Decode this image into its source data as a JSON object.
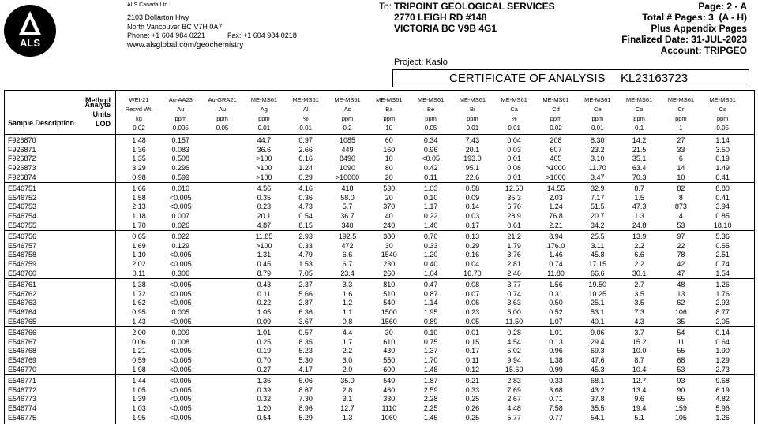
{
  "header": {
    "logo": "ALS",
    "company": "ALS Canada Ltd.",
    "address": [
      "2103 Dollarton Hwy",
      "North Vancouver BC V7H 0A7"
    ],
    "phone": "Phone: +1 604 984 0221",
    "fax": "Fax: +1 604 984 0218",
    "website": "www.alsglobal.com/geochemistry",
    "to_label": "To:",
    "to": [
      "TRIPOINT GEOLOGICAL SERVICES",
      "2770 LEIGH RD #148",
      "VICTORIA BC V9B 4G1"
    ],
    "page_info": [
      "Page: 2 - A",
      "Total # Pages: 3  (A - H)",
      "Plus Appendix Pages",
      "Finalized Date: 31-JUL-2023",
      "Account: TRIPGEO"
    ],
    "project": "Project: Kaslo",
    "certificate": "CERTIFICATE OF ANALYSIS",
    "certificate_id": "KL23163723"
  },
  "table": {
    "row_labels": [
      "Method",
      "Analyte",
      "Units",
      "LOD"
    ],
    "sample_header": "Sample Description",
    "columns": [
      [
        "WEI-21",
        "Recvd Wt.",
        "kg",
        "0.02"
      ],
      [
        "Au-AA23",
        "Au",
        "ppm",
        "0.005"
      ],
      [
        "Au-GRA21",
        "Au",
        "ppm",
        "0.05"
      ],
      [
        "ME-MS61",
        "Ag",
        "ppm",
        "0.01"
      ],
      [
        "ME-MS61",
        "Al",
        "%",
        "0.01"
      ],
      [
        "ME-MS61",
        "As",
        "ppm",
        "0.2"
      ],
      [
        "ME-MS61",
        "Ba",
        "ppm",
        "10"
      ],
      [
        "ME-MS61",
        "Be",
        "ppm",
        "0.05"
      ],
      [
        "ME-MS61",
        "Bi",
        "ppm",
        "0.01"
      ],
      [
        "ME-MS61",
        "Ca",
        "%",
        "0.01"
      ],
      [
        "ME-MS61",
        "Cd",
        "ppm",
        "0.02"
      ],
      [
        "ME-MS61",
        "Ce",
        "ppm",
        "0.01"
      ],
      [
        "ME-MS61",
        "Co",
        "ppm",
        "0.1"
      ],
      [
        "ME-MS61",
        "Cr",
        "ppm",
        "1"
      ],
      [
        "ME-MS61",
        "Cs",
        "ppm",
        "0.05"
      ]
    ],
    "groups": [
      [
        [
          "F926870",
          "1.48",
          "0.157",
          null,
          "44.7",
          "0.97",
          "1085",
          "60",
          "0.34",
          "7.43",
          "0.04",
          "208",
          "8.30",
          "14.2",
          "27",
          "1.14"
        ],
        [
          "F926871",
          "1.36",
          "0.083",
          null,
          "36.6",
          "2.66",
          "449",
          "160",
          "0.96",
          "20.1",
          "0.03",
          "607",
          "23.2",
          "21.5",
          "33",
          "3.50"
        ],
        [
          "F926872",
          "1.35",
          "0.508",
          null,
          ">100",
          "0.16",
          "8490",
          "10",
          "<0.05",
          "193.0",
          "0.01",
          "405",
          "3.10",
          "35.1",
          "6",
          "0.19"
        ],
        [
          "F926873",
          "3.29",
          "0.296",
          null,
          ">100",
          "1.24",
          "1090",
          "80",
          "0.42",
          "95.1",
          "0.08",
          ">1000",
          "11.70",
          "63.4",
          "14",
          "1.49"
        ],
        [
          "F926874",
          "0.98",
          "0.599",
          null,
          ">100",
          "0.29",
          ">10000",
          "20",
          "0.11",
          "22.6",
          "0.01",
          ">1000",
          "3.47",
          "70.3",
          "10",
          "0.41"
        ]
      ],
      [
        [
          "E546751",
          "1.66",
          "0.010",
          null,
          "4.56",
          "4.16",
          "418",
          "530",
          "1.03",
          "0.58",
          "12.50",
          "14.55",
          "32.9",
          "8.7",
          "82",
          "8.80"
        ],
        [
          "E546752",
          "1.58",
          "<0.005",
          null,
          "0.35",
          "0.36",
          "58.0",
          "20",
          "0.10",
          "0.09",
          "35.3",
          "2.03",
          "7.17",
          "1.5",
          "8",
          "0.41"
        ],
        [
          "E546753",
          "2.13",
          "<0.005",
          null,
          "0.23",
          "4.73",
          "5.7",
          "370",
          "1.17",
          "0.14",
          "6.76",
          "1.24",
          "51.5",
          "47.3",
          "873",
          "3.94"
        ],
        [
          "E546754",
          "1.18",
          "0.007",
          null,
          "20.1",
          "0.54",
          "36.7",
          "40",
          "0.22",
          "0.03",
          "28.9",
          "76.8",
          "20.7",
          "1.3",
          "4",
          "0.85"
        ],
        [
          "E546755",
          "1.70",
          "0.026",
          null,
          "4.87",
          "8.15",
          "340",
          "240",
          "1.40",
          "0.17",
          "0.61",
          "2.21",
          "34.2",
          "24.8",
          "53",
          "18.10"
        ]
      ],
      [
        [
          "E546756",
          "0.65",
          "0.022",
          null,
          "11.85",
          "2.93",
          "192.5",
          "380",
          "0.70",
          "0.13",
          "21.2",
          "8.94",
          "25.5",
          "13.9",
          "97",
          "5.36"
        ],
        [
          "E546757",
          "1.69",
          "0.129",
          null,
          ">100",
          "0.33",
          "472",
          "30",
          "0.33",
          "0.29",
          "1.79",
          "176.0",
          "3.11",
          "2.2",
          "22",
          "0.55"
        ],
        [
          "E546758",
          "1.10",
          "<0.005",
          null,
          "1.31",
          "4.79",
          "6.6",
          "1540",
          "1.20",
          "0.16",
          "3.76",
          "1.46",
          "45.8",
          "6.6",
          "78",
          "2.51"
        ],
        [
          "E546759",
          "2.02",
          "<0.005",
          null,
          "0.45",
          "1.53",
          "6.7",
          "230",
          "0.40",
          "0.04",
          "2.81",
          "0.74",
          "17.15",
          "2.2",
          "42",
          "0.74"
        ],
        [
          "E546760",
          "0.11",
          "0.306",
          null,
          "8.79",
          "7.05",
          "23.4",
          "260",
          "1.04",
          "16.70",
          "2.46",
          "11.80",
          "66.6",
          "30.1",
          "47",
          "1.54"
        ]
      ],
      [
        [
          "E546761",
          "1.38",
          "<0.005",
          null,
          "0.43",
          "2.37",
          "3.3",
          "810",
          "0.47",
          "0.08",
          "3.77",
          "1.56",
          "19.50",
          "2.7",
          "48",
          "1.26"
        ],
        [
          "E546762",
          "1.72",
          "<0.005",
          null,
          "0.11",
          "5.66",
          "1.6",
          "510",
          "0.87",
          "0.07",
          "0.74",
          "0.31",
          "10.25",
          "3.5",
          "13",
          "1.76"
        ],
        [
          "E546763",
          "1.62",
          "<0.005",
          null,
          "0.22",
          "2.87",
          "1.2",
          "540",
          "1.14",
          "0.06",
          "3.63",
          "0.50",
          "25.1",
          "3.5",
          "62",
          "2.93"
        ],
        [
          "E546764",
          "0.95",
          "0.005",
          null,
          "1.05",
          "6.36",
          "1.1",
          "1500",
          "1.95",
          "0.23",
          "5.00",
          "0.52",
          "53.1",
          "7.3",
          "106",
          "8.77"
        ],
        [
          "E546765",
          "1.43",
          "<0.005",
          null,
          "0.09",
          "3.67",
          "0.8",
          "1560",
          "0.89",
          "0.05",
          "11.50",
          "1.07",
          "40.1",
          "4.3",
          "35",
          "2.05"
        ]
      ],
      [
        [
          "E546766",
          "2.00",
          "0.009",
          null,
          "1.01",
          "0.57",
          "4.4",
          "30",
          "0.10",
          "0.01",
          "0.28",
          "1.01",
          "9.06",
          "3.7",
          "54",
          "0.14"
        ],
        [
          "E546767",
          "0.06",
          "0.008",
          null,
          "0.25",
          "8.35",
          "1.7",
          "610",
          "0.75",
          "0.15",
          "4.54",
          "0.13",
          "29.4",
          "15.2",
          "11",
          "0.64"
        ],
        [
          "E546768",
          "1.21",
          "<0.005",
          null,
          "0.19",
          "5.23",
          "2.2",
          "430",
          "1.37",
          "0.17",
          "5.02",
          "0.96",
          "69.3",
          "10.0",
          "55",
          "1.90"
        ],
        [
          "E546769",
          "0.59",
          "<0.005",
          null,
          "0.70",
          "5.30",
          "3.0",
          "550",
          "1.70",
          "0.11",
          "9.94",
          "1.38",
          "47.6",
          "8.7",
          "68",
          "1.29"
        ],
        [
          "E546770",
          "1.98",
          "<0.005",
          null,
          "0.27",
          "4.17",
          "2.0",
          "600",
          "1.48",
          "0.12",
          "15.60",
          "0.99",
          "45.3",
          "10.4",
          "53",
          "2.73"
        ]
      ],
      [
        [
          "E546771",
          "1.44",
          "<0.005",
          null,
          "1.36",
          "6.06",
          "35.0",
          "540",
          "1.87",
          "0.21",
          "2.83",
          "0.33",
          "68.1",
          "12.7",
          "93",
          "9.68"
        ],
        [
          "E546772",
          "1.05",
          "<0.005",
          null,
          "0.39",
          "8.67",
          "2.8",
          "460",
          "2.59",
          "0.33",
          "7.69",
          "3.68",
          "43.2",
          "13.4",
          "90",
          "6.19"
        ],
        [
          "E546773",
          "1.39",
          "<0.005",
          null,
          "0.32",
          "7.30",
          "3.1",
          "330",
          "2.28",
          "0.25",
          "2.67",
          "0.71",
          "37.8",
          "9.6",
          "65",
          "4.82"
        ],
        [
          "E546774",
          "1.03",
          "<0.005",
          null,
          "1.20",
          "8.96",
          "12.7",
          "1110",
          "2.25",
          "0.26",
          "4.48",
          "7.58",
          "35.5",
          "19.4",
          "159",
          "5.96"
        ],
        [
          "E546775",
          "1.95",
          "<0.005",
          null,
          "0.54",
          "5.29",
          "1.3",
          "1060",
          "1.45",
          "0.25",
          "5.77",
          "0.77",
          "54.1",
          "5.1",
          "105",
          "1.26"
        ]
      ]
    ]
  }
}
